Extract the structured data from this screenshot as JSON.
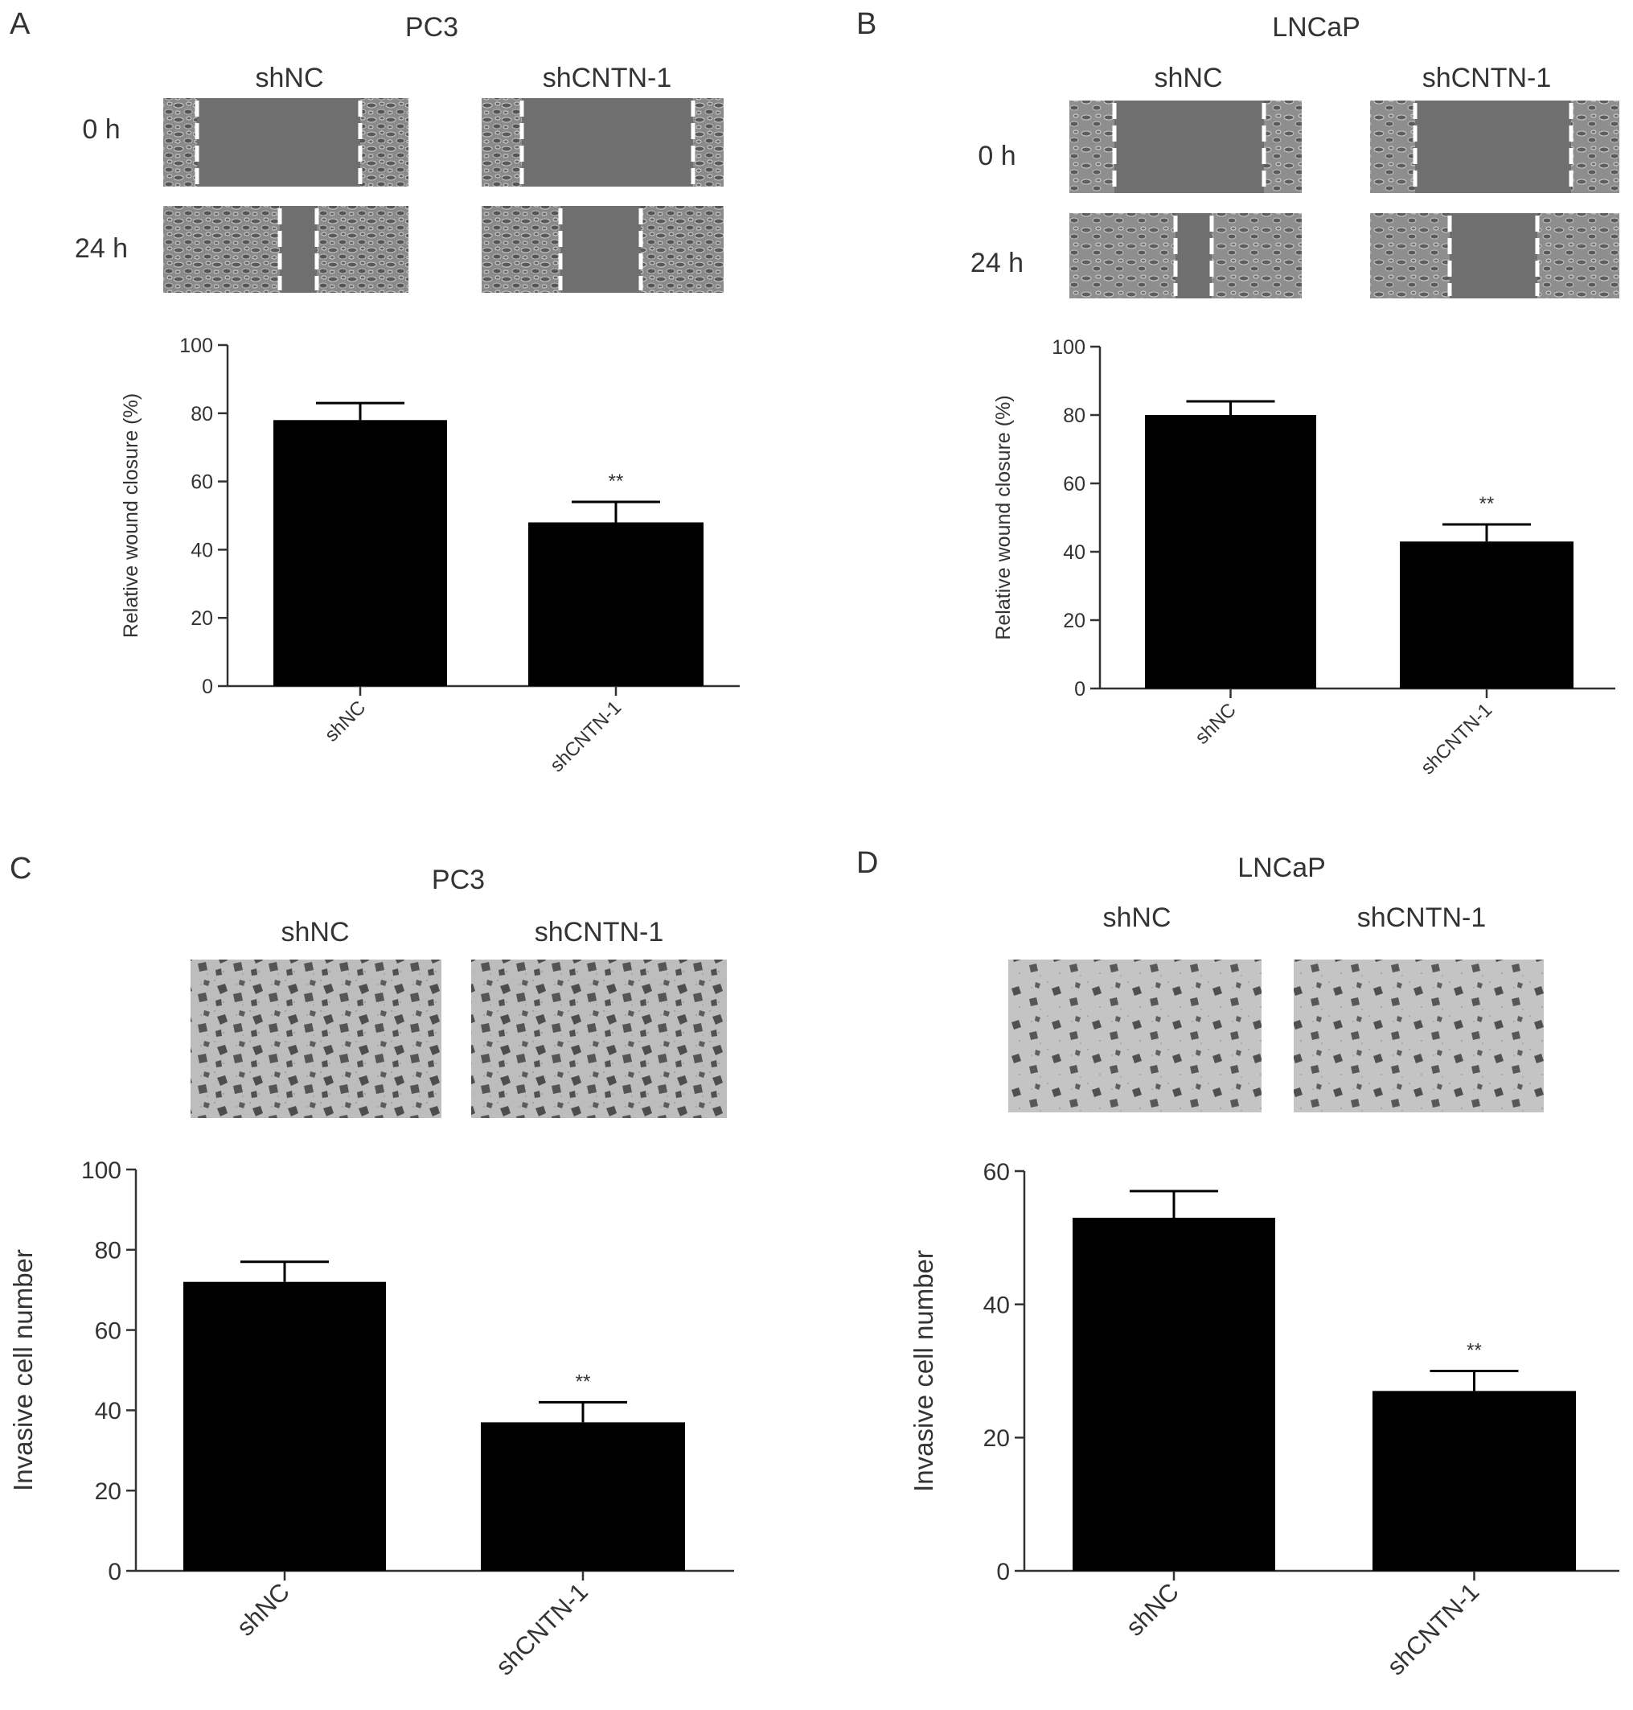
{
  "panels": [
    {
      "letter": "A",
      "cell_line": "PC3",
      "group_labels": [
        "shNC",
        "shCNTN-1"
      ],
      "time_labels": [
        "0 h",
        "24 h"
      ],
      "micrograph_type": "wound-healing",
      "cell_density": "dense"
    },
    {
      "letter": "B",
      "cell_line": "LNCaP",
      "group_labels": [
        "shNC",
        "shCNTN-1"
      ],
      "time_labels": [
        "0 h",
        "24 h"
      ],
      "micrograph_type": "wound-healing",
      "cell_density": "medium"
    },
    {
      "letter": "C",
      "cell_line": "PC3",
      "group_labels": [
        "shNC",
        "shCNTN-1"
      ],
      "time_labels": [],
      "micrograph_type": "transwell-invasion",
      "cell_density": "high"
    },
    {
      "letter": "D",
      "cell_line": "LNCaP",
      "group_labels": [
        "shNC",
        "shCNTN-1"
      ],
      "time_labels": [],
      "micrograph_type": "transwell-invasion",
      "cell_density": "medium"
    }
  ],
  "colors": {
    "bar": "#000000",
    "axis": "#333333",
    "text": "#333333",
    "micrograph_bg": "#6f6f6f",
    "scratch_line": "#ffffff"
  },
  "chart_data": [
    {
      "panel": "A",
      "type": "bar",
      "categories": [
        "shNC",
        "shCNTN-1"
      ],
      "values": [
        78,
        48
      ],
      "errors": [
        5,
        6
      ],
      "significance": [
        "",
        "**"
      ],
      "ylabel": "Relative wound closure (%)",
      "ylim": [
        0,
        100
      ],
      "yticks": [
        0,
        20,
        40,
        60,
        80,
        100
      ]
    },
    {
      "panel": "B",
      "type": "bar",
      "categories": [
        "shNC",
        "shCNTN-1"
      ],
      "values": [
        80,
        43
      ],
      "errors": [
        4,
        5
      ],
      "significance": [
        "",
        "**"
      ],
      "ylabel": "Relative wound closure (%)",
      "ylim": [
        0,
        100
      ],
      "yticks": [
        0,
        20,
        40,
        60,
        80,
        100
      ]
    },
    {
      "panel": "C",
      "type": "bar",
      "categories": [
        "shNC",
        "shCNTN-1"
      ],
      "values": [
        72,
        37
      ],
      "errors": [
        5,
        5
      ],
      "significance": [
        "",
        "**"
      ],
      "ylabel": "Invasive cell number",
      "ylim": [
        0,
        100
      ],
      "yticks": [
        0,
        20,
        40,
        60,
        80,
        100
      ]
    },
    {
      "panel": "D",
      "type": "bar",
      "categories": [
        "shNC",
        "shCNTN-1"
      ],
      "values": [
        53,
        27
      ],
      "errors": [
        4,
        3
      ],
      "significance": [
        "",
        "**"
      ],
      "ylabel": "Invasive cell number",
      "ylim": [
        0,
        60
      ],
      "yticks": [
        0,
        20,
        40,
        60
      ]
    }
  ]
}
